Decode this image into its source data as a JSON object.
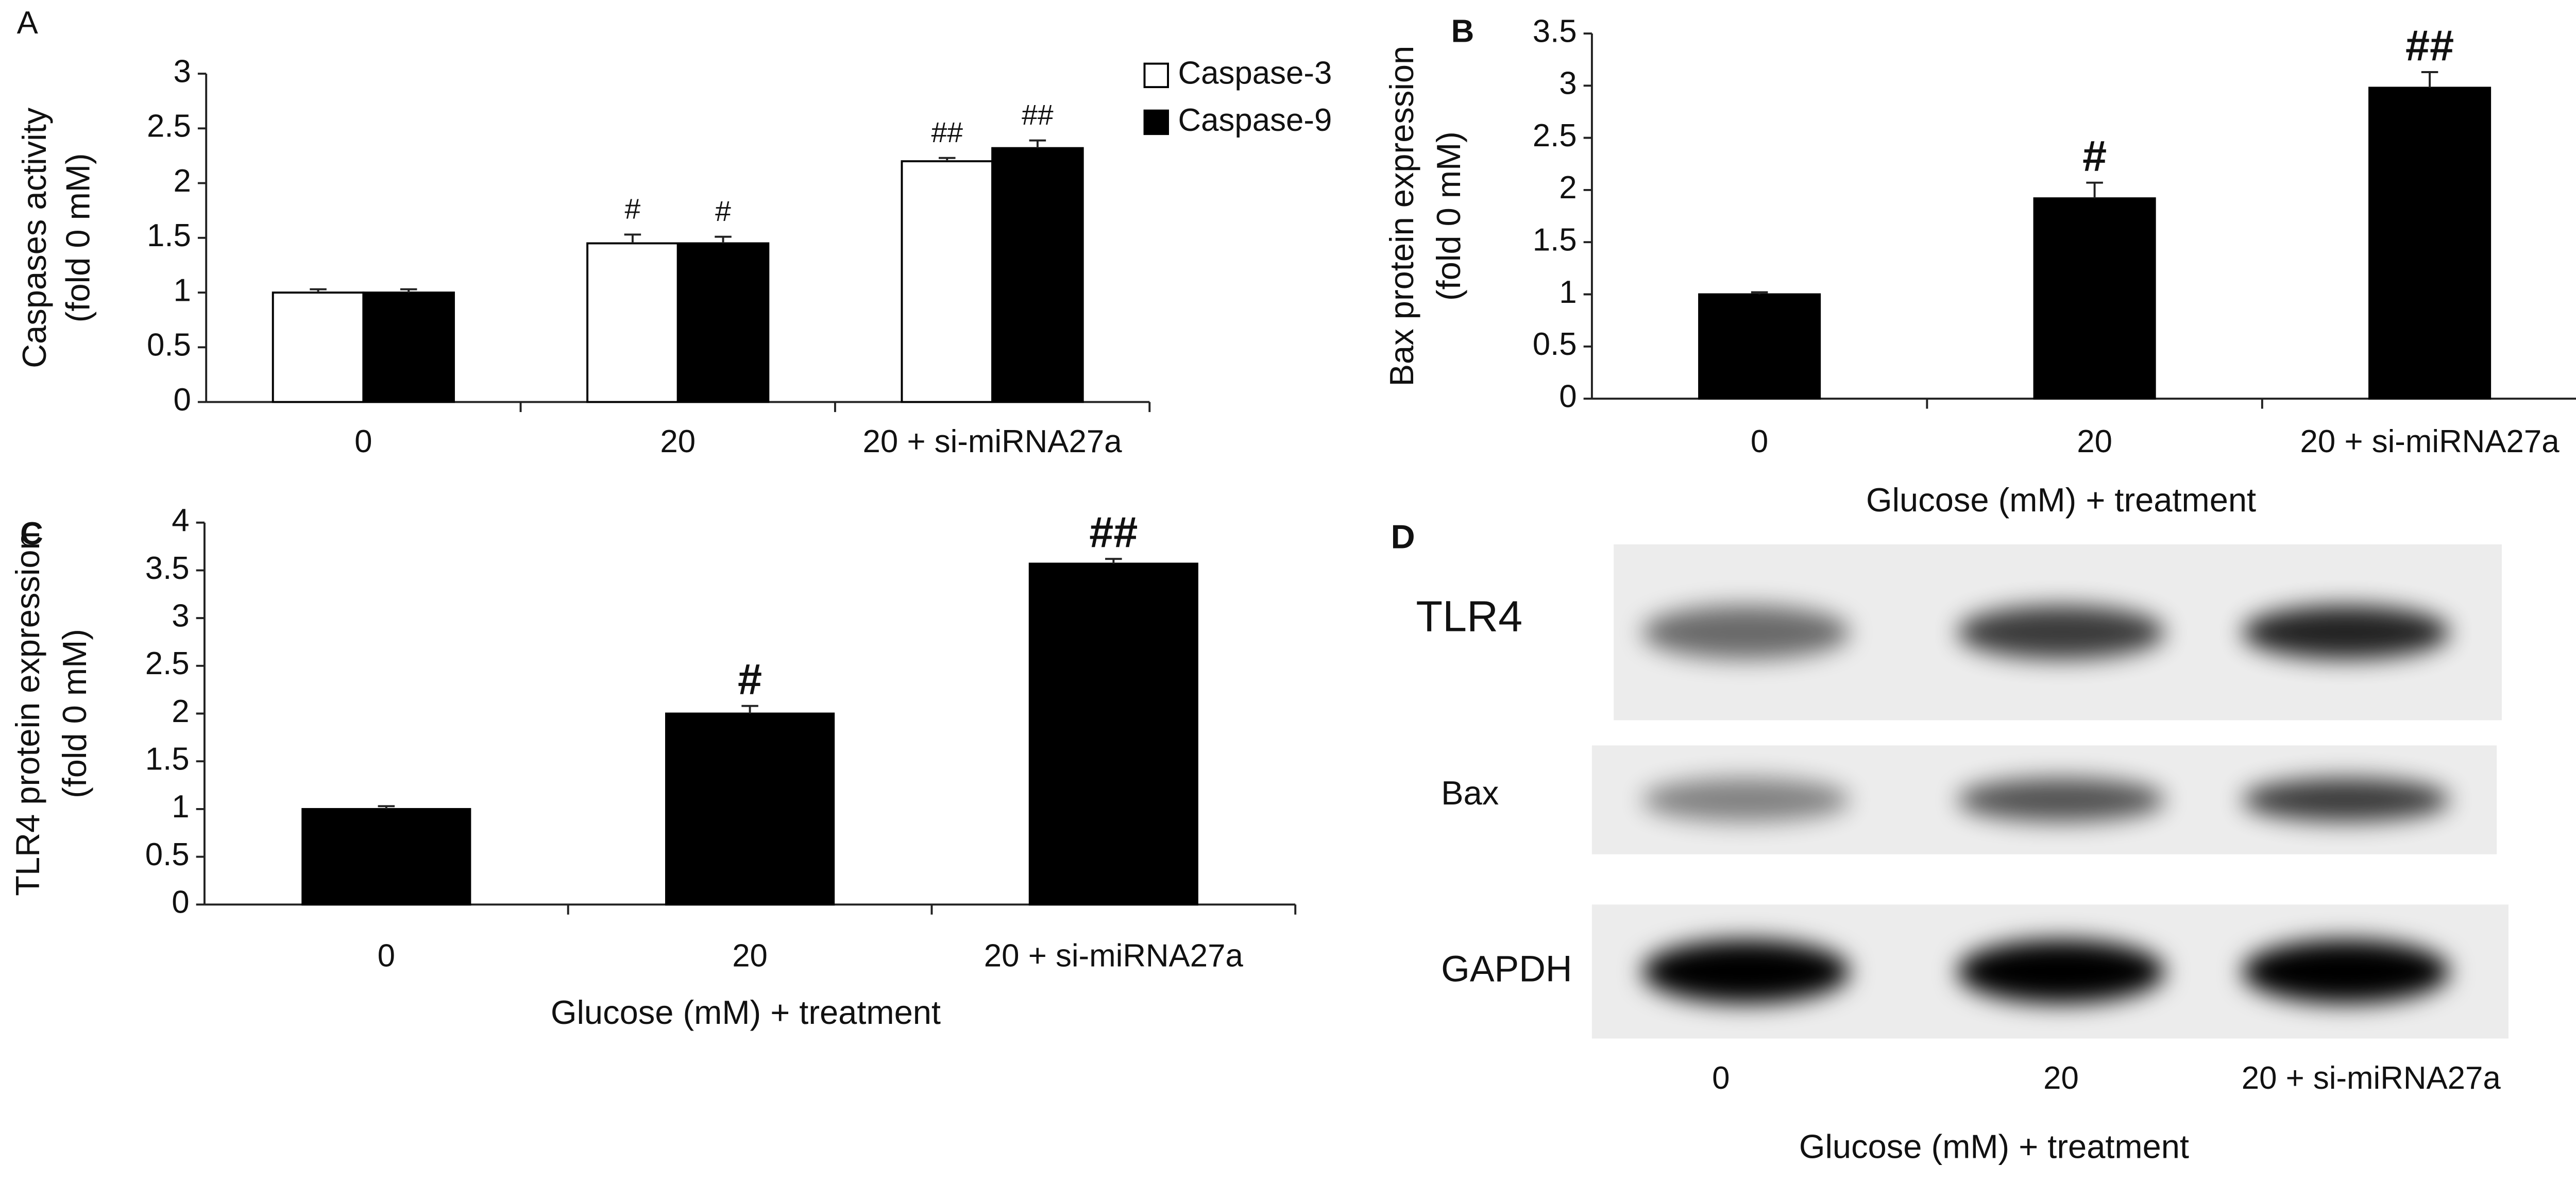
{
  "chart_data": [
    {
      "type": "bar",
      "panel": "A",
      "ylabel": [
        "Caspases activity",
        "(fold 0 mM)"
      ],
      "categories": [
        "0",
        "20",
        "20 + si-miRNA27a"
      ],
      "series": [
        {
          "name": "Caspase-3",
          "color": "#ffffff",
          "values": [
            1.0,
            1.45,
            2.2
          ],
          "errors": [
            0.03,
            0.08,
            0.03
          ],
          "significance": [
            null,
            "#",
            "##"
          ]
        },
        {
          "name": "Caspase-9",
          "color": "#000000",
          "values": [
            1.0,
            1.45,
            2.32
          ],
          "errors": [
            0.03,
            0.06,
            0.07
          ],
          "significance": [
            null,
            "#",
            "##"
          ]
        }
      ],
      "ylim": [
        0,
        3
      ],
      "yticks": [
        0,
        0.5,
        1,
        1.5,
        2,
        2.5,
        3
      ]
    },
    {
      "type": "bar",
      "panel": "B",
      "ylabel": [
        "Bax protein expression",
        "(fold 0 mM)"
      ],
      "xlabel": "Glucose (mM) + treatment",
      "categories": [
        "0",
        "20",
        "20 + si-miRNA27a"
      ],
      "series": [
        {
          "color": "#000000",
          "values": [
            1.0,
            1.92,
            2.98
          ],
          "errors": [
            0.02,
            0.15,
            0.15
          ],
          "significance": [
            null,
            "#",
            "##"
          ]
        }
      ],
      "ylim": [
        0,
        3.5
      ],
      "yticks": [
        0,
        0.5,
        1,
        1.5,
        2,
        2.5,
        3,
        3.5
      ]
    },
    {
      "type": "bar",
      "panel": "C",
      "ylabel": [
        "TLR4 protein expression",
        "(fold 0 mM)"
      ],
      "xlabel": "Glucose (mM) + treatment",
      "categories": [
        "0",
        "20",
        "20 + si-miRNA27a"
      ],
      "series": [
        {
          "color": "#000000",
          "values": [
            1.0,
            2.0,
            3.57
          ],
          "errors": [
            0.03,
            0.08,
            0.05
          ],
          "significance": [
            null,
            "#",
            "##"
          ]
        }
      ],
      "ylim": [
        0,
        4
      ],
      "yticks": [
        0,
        0.5,
        1,
        1.5,
        2,
        2.5,
        3,
        3.5,
        4
      ]
    }
  ],
  "blot": {
    "panel": "D",
    "rows": [
      "TLR4",
      "Bax",
      "GAPDH"
    ],
    "categories": [
      "0",
      "20",
      "20 + si-miRNA27a"
    ],
    "xlabel": "Glucose (mM) + treatment"
  }
}
